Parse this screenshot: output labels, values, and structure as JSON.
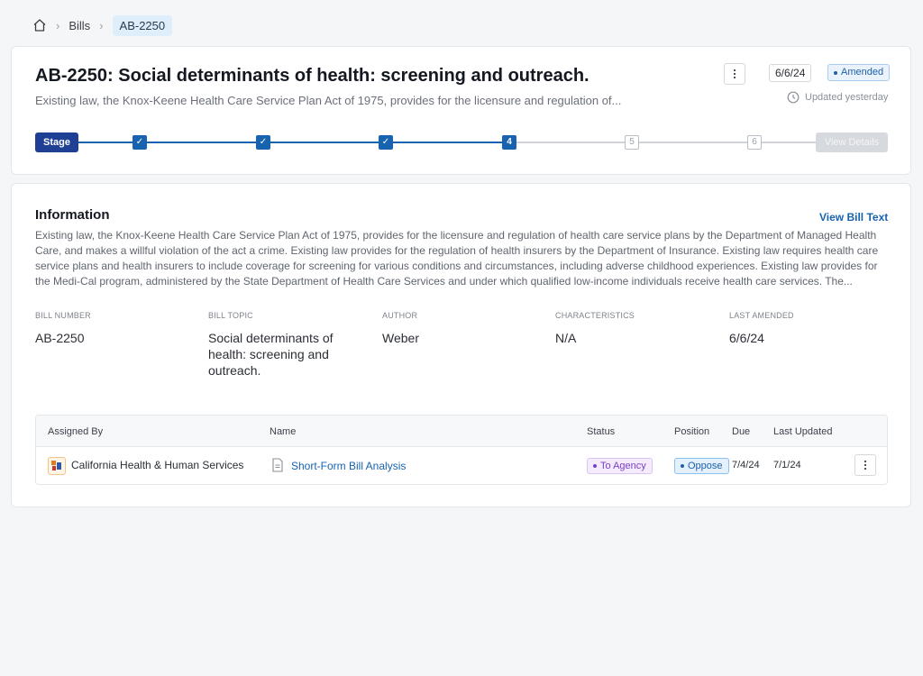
{
  "breadcrumb": {
    "home_icon": "home-icon",
    "items": [
      "Bills",
      "AB-2250"
    ]
  },
  "header": {
    "title": "AB-2250: Social determinants of health: screening and outreach.",
    "subtitle": "Existing law, the Knox-Keene Health Care Service Plan Act of 1975, provides for the licensure and regulation of...",
    "date": "6/6/24",
    "status_badge": "Amended",
    "updated": "Updated yesterday"
  },
  "stages": {
    "label": "Stage",
    "steps": [
      {
        "label": "✓",
        "state": "done"
      },
      {
        "label": "✓",
        "state": "done"
      },
      {
        "label": "✓",
        "state": "done"
      },
      {
        "label": "4",
        "state": "current"
      },
      {
        "label": "5",
        "state": "future"
      },
      {
        "label": "6",
        "state": "future"
      }
    ],
    "view_details": "View Details"
  },
  "info": {
    "heading": "Information",
    "view_bill_text": "View Bill Text",
    "body": "Existing law, the Knox-Keene Health Care Service Plan Act of 1975, provides for the licensure and regulation of health care service plans by the Department of Managed Health Care, and makes a willful violation of the act a crime. Existing law provides for the regulation of health insurers by the Department of Insurance. Existing law requires health care service plans and health insurers to include coverage for screening for various conditions and circumstances, including adverse childhood experiences. Existing law provides for the Medi-Cal program, administered by the State Department of Health Care Services and under which qualified low-income individuals receive health care services. The...",
    "fields": [
      {
        "label": "BILL NUMBER",
        "value": "AB-2250"
      },
      {
        "label": "BILL TOPIC",
        "value": "Social determinants of health: screening and outreach."
      },
      {
        "label": "AUTHOR",
        "value": "Weber"
      },
      {
        "label": "CHARACTERISTICS",
        "value": "N/A"
      },
      {
        "label": "LAST AMENDED",
        "value": "6/6/24"
      }
    ]
  },
  "table": {
    "headers": [
      "Assigned By",
      "Name",
      "Status",
      "Position",
      "Due",
      "Last Updated"
    ],
    "rows": [
      {
        "assigned_by": "California Health & Human Services",
        "name": "Short-Form Bill Analysis",
        "status": "To Agency",
        "position": "Oppose",
        "due": "7/4/24",
        "last_updated": "7/1/24"
      }
    ]
  },
  "colors": {
    "accent": "#1763b0",
    "stage_pill": "#1e3f94",
    "status_purple": "#7a3fc8"
  }
}
